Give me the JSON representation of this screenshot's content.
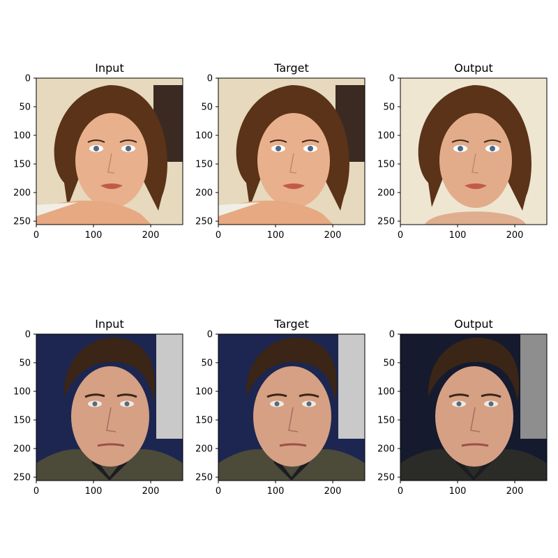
{
  "figure": {
    "panels": [
      {
        "title": "Input",
        "subject": "woman"
      },
      {
        "title": "Target",
        "subject": "woman"
      },
      {
        "title": "Output",
        "subject": "woman"
      },
      {
        "title": "Input",
        "subject": "man"
      },
      {
        "title": "Target",
        "subject": "man"
      },
      {
        "title": "Output",
        "subject": "man"
      }
    ],
    "x_ticks": [
      "0",
      "100",
      "200"
    ],
    "y_ticks": [
      "0",
      "50",
      "100",
      "150",
      "200",
      "250"
    ],
    "image_size": [
      256,
      256
    ],
    "colors": {
      "woman_background": "#e6d9bd",
      "woman_hair": "#5a3318",
      "woman_skin": "#e8b08c",
      "man_background": "#1c2650",
      "man_hair": "#3a2516",
      "man_skin": "#d6a085",
      "man_jacket": "#4c4a38"
    }
  }
}
